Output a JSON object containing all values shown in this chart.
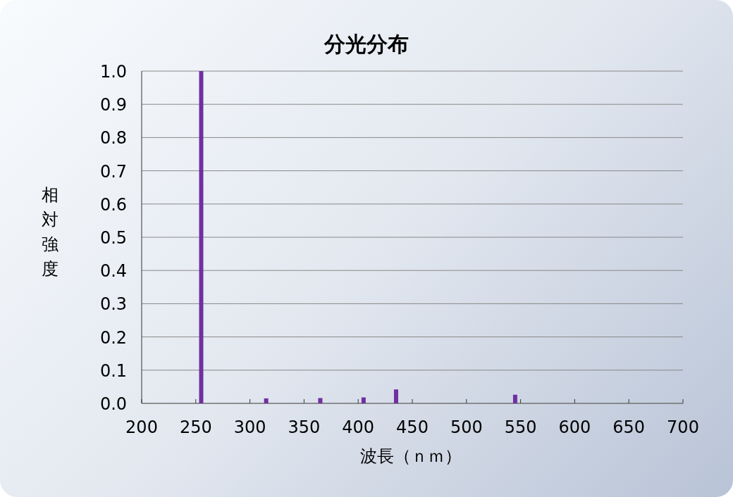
{
  "chart_data": {
    "type": "bar",
    "title": "分光分布",
    "xlabel": "波長（ｎｍ）",
    "ylabel": "相対強度",
    "x": [
      255,
      315,
      365,
      405,
      435,
      545
    ],
    "values": [
      1.0,
      0.015,
      0.016,
      0.018,
      0.042,
      0.026
    ],
    "color": "#7030a0",
    "xlim": [
      200,
      700
    ],
    "xticks": [
      200,
      250,
      300,
      350,
      400,
      450,
      500,
      550,
      600,
      650,
      700
    ],
    "ylim": [
      0,
      1.0
    ],
    "yticks": [
      {
        "value": 0,
        "label": "0.0"
      },
      0.1,
      0.2,
      0.3,
      0.4,
      0.5,
      0.6,
      0.7,
      0.8,
      0.9,
      {
        "value": 1.0,
        "label": "1.0"
      }
    ],
    "grid": "y"
  }
}
